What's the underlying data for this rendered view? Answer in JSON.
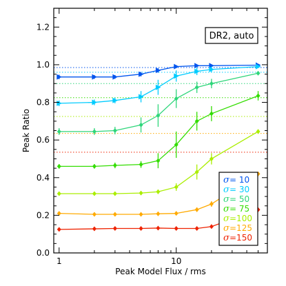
{
  "chart_data": {
    "type": "line",
    "xlabel": "Peak Model Flux / rms",
    "ylabel": "Peak Ratio",
    "xscale": "log",
    "xlim": [
      0.9,
      60
    ],
    "ylim": [
      0.0,
      1.3
    ],
    "x_ticks": [
      {
        "value": 1,
        "label": "1"
      },
      {
        "value": 10,
        "label": "10"
      }
    ],
    "y_ticks": [
      {
        "value": 0.0,
        "label": "0.0"
      },
      {
        "value": 0.2,
        "label": "0.2"
      },
      {
        "value": 0.4,
        "label": "0.4"
      },
      {
        "value": 0.6,
        "label": "0.6"
      },
      {
        "value": 0.8,
        "label": "0.8"
      },
      {
        "value": 1.0,
        "label": "1.0"
      },
      {
        "value": 1.2,
        "label": "1.2"
      }
    ],
    "annotation_box": "DR2, auto",
    "legend_position": "bottom-right",
    "x": [
      1,
      2,
      3,
      5,
      7,
      10,
      15,
      20,
      50
    ],
    "series": [
      {
        "name": "σ  = 10",
        "sym": "σ",
        "eq": " =  10",
        "color": "#0055ee",
        "marker": "triangle-right",
        "hline": 0.985,
        "values": [
          0.935,
          0.935,
          0.935,
          0.95,
          0.97,
          0.99,
          0.995,
          0.995,
          0.998
        ],
        "errors": [
          0.012,
          0.01,
          0.01,
          0.012,
          0.012,
          0.008,
          0.006,
          0.005,
          0.004
        ]
      },
      {
        "name": "σ  = 30",
        "sym": "σ",
        "eq": " =  30",
        "color": "#00ccff",
        "marker": "triangle-right",
        "hline": 0.96,
        "values": [
          0.795,
          0.8,
          0.81,
          0.83,
          0.88,
          0.94,
          0.965,
          0.975,
          0.99
        ],
        "errors": [
          0.015,
          0.015,
          0.015,
          0.03,
          0.04,
          0.03,
          0.02,
          0.015,
          0.008
        ]
      },
      {
        "name": "σ  = 50",
        "sym": "σ",
        "eq": " =  50",
        "color": "#2ed67a",
        "marker": "diamond",
        "hline": 0.9,
        "values": [
          0.645,
          0.645,
          0.65,
          0.68,
          0.73,
          0.82,
          0.88,
          0.9,
          0.955
        ],
        "errors": [
          0.018,
          0.018,
          0.02,
          0.04,
          0.06,
          0.05,
          0.03,
          0.025,
          0.01
        ]
      },
      {
        "name": "σ  = 75",
        "sym": "σ",
        "eq": " =  75",
        "color": "#33dd00",
        "marker": "diamond",
        "hline": 0.825,
        "values": [
          0.46,
          0.46,
          0.465,
          0.47,
          0.49,
          0.575,
          0.7,
          0.74,
          0.835
        ],
        "errors": [
          0.012,
          0.012,
          0.015,
          0.018,
          0.04,
          0.07,
          0.05,
          0.04,
          0.025
        ]
      },
      {
        "name": "σ  =100",
        "sym": "σ",
        "eq": " =100",
        "color": "#aaee00",
        "marker": "diamond",
        "hline": 0.725,
        "values": [
          0.315,
          0.315,
          0.315,
          0.318,
          0.325,
          0.35,
          0.43,
          0.5,
          0.645
        ],
        "errors": [
          0.008,
          0.008,
          0.008,
          0.01,
          0.012,
          0.02,
          0.04,
          0.03,
          0.012
        ]
      },
      {
        "name": "σ  =125",
        "sym": "σ",
        "eq": " =125",
        "color": "#ffaa00",
        "marker": "diamond",
        "hline": 0.635,
        "values": [
          0.21,
          0.205,
          0.205,
          0.205,
          0.208,
          0.21,
          0.23,
          0.26,
          0.42
        ],
        "errors": [
          0.005,
          0.005,
          0.005,
          0.005,
          0.006,
          0.008,
          0.012,
          0.015,
          0.01
        ]
      },
      {
        "name": "σ  =150",
        "sym": "σ",
        "eq": " =150",
        "color": "#ee2200",
        "marker": "diamond",
        "hline": 0.535,
        "values": [
          0.125,
          0.128,
          0.13,
          0.13,
          0.132,
          0.13,
          0.13,
          0.14,
          0.23
        ],
        "errors": [
          0.004,
          0.004,
          0.004,
          0.004,
          0.004,
          0.004,
          0.005,
          0.008,
          0.01
        ]
      }
    ]
  }
}
